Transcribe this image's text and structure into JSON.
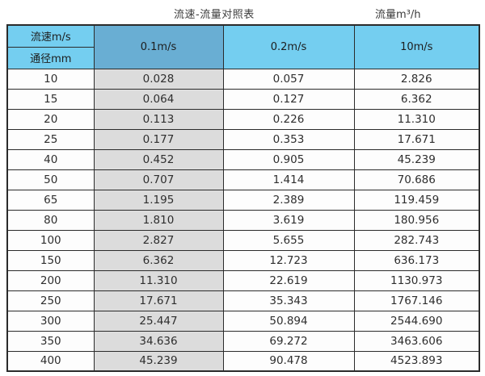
{
  "titles": {
    "main": "流速-流量对照表",
    "unit": "流量m³/h"
  },
  "table": {
    "corner_top": "流速m/s",
    "corner_bottom": "通径mm",
    "velocity_columns": [
      "0.1m/s",
      "0.2m/s",
      "10m/s"
    ],
    "rows": [
      [
        "10",
        "0.028",
        "0.057",
        "2.826"
      ],
      [
        "15",
        "0.064",
        "0.127",
        "6.362"
      ],
      [
        "20",
        "0.113",
        "0.226",
        "11.310"
      ],
      [
        "25",
        "0.177",
        "0.353",
        "17.671"
      ],
      [
        "40",
        "0.452",
        "0.905",
        "45.239"
      ],
      [
        "50",
        "0.707",
        "1.414",
        "70.686"
      ],
      [
        "65",
        "1.195",
        "2.389",
        "119.459"
      ],
      [
        "80",
        "1.810",
        "3.619",
        "180.956"
      ],
      [
        "100",
        "2.827",
        "5.655",
        "282.743"
      ],
      [
        "150",
        "6.362",
        "12.723",
        "636.173"
      ],
      [
        "200",
        "11.310",
        "22.619",
        "1130.973"
      ],
      [
        "250",
        "17.671",
        "35.343",
        "1767.146"
      ],
      [
        "300",
        "25.447",
        "50.894",
        "2544.690"
      ],
      [
        "350",
        "34.636",
        "69.272",
        "3463.606"
      ],
      [
        "400",
        "45.239",
        "90.478",
        "4523.893"
      ]
    ]
  },
  "colors": {
    "header_blue": "#74cef0",
    "header_highlight_blue": "#69aed3",
    "highlight_column_grey": "#dcdcdc",
    "border": "#2b2b2b"
  },
  "chart_data": {
    "type": "table",
    "title": "流速-流量对照表",
    "unit_label": "流量m³/h",
    "row_header_label": "通径mm",
    "column_header_label": "流速m/s",
    "columns": [
      "通径mm",
      "0.1m/s",
      "0.2m/s",
      "10m/s"
    ],
    "diameters_mm": [
      10,
      15,
      20,
      25,
      40,
      50,
      65,
      80,
      100,
      150,
      200,
      250,
      300,
      350,
      400
    ],
    "series": [
      {
        "name": "0.1m/s",
        "values": [
          0.028,
          0.064,
          0.113,
          0.177,
          0.452,
          0.707,
          1.195,
          1.81,
          2.827,
          6.362,
          11.31,
          17.671,
          25.447,
          34.636,
          45.239
        ]
      },
      {
        "name": "0.2m/s",
        "values": [
          0.057,
          0.127,
          0.226,
          0.353,
          0.905,
          1.414,
          2.389,
          3.619,
          5.655,
          12.723,
          22.619,
          35.343,
          50.894,
          69.272,
          90.478
        ]
      },
      {
        "name": "10m/s",
        "values": [
          2.826,
          6.362,
          11.31,
          17.671,
          45.239,
          70.686,
          119.459,
          180.956,
          282.743,
          636.173,
          1130.973,
          1767.146,
          2544.69,
          3463.606,
          4523.893
        ]
      }
    ]
  }
}
